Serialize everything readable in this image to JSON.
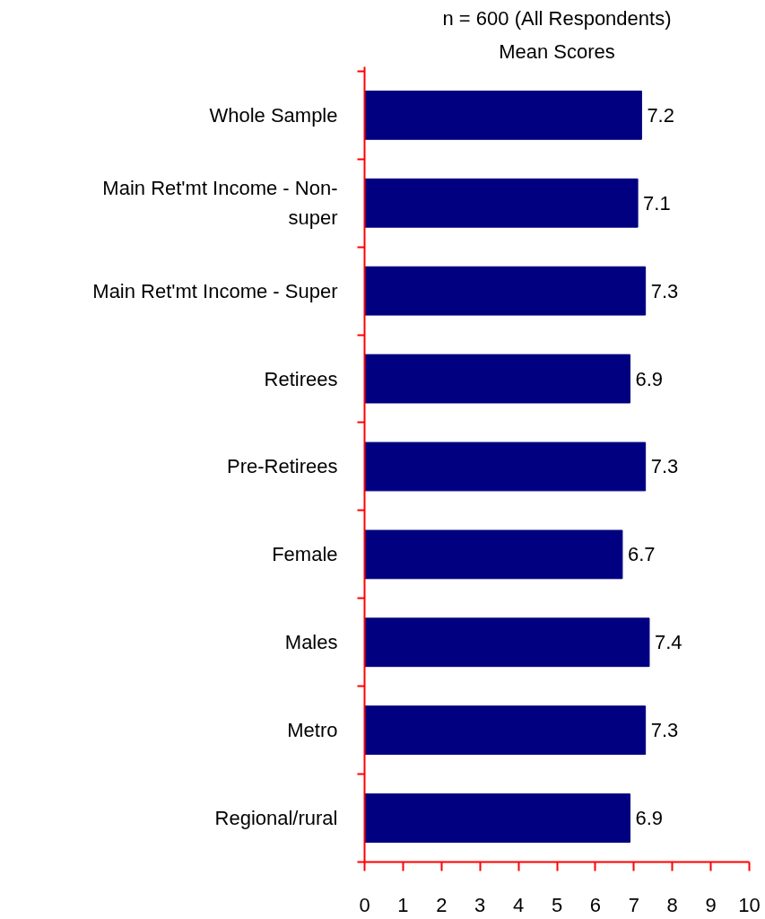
{
  "chart_data": {
    "type": "bar",
    "orientation": "horizontal",
    "title": "n = 600 (All Respondents)",
    "subtitle": "Mean Scores",
    "categories": [
      "Whole Sample",
      "Main Ret'mt Income - Non-\nsuper",
      "Main Ret'mt Income - Super",
      "Retirees",
      "Pre-Retirees",
      "Female",
      "Males",
      "Metro",
      "Regional/rural"
    ],
    "values": [
      7.2,
      7.1,
      7.3,
      6.9,
      7.3,
      6.7,
      7.4,
      7.3,
      6.9
    ],
    "color": "#000080",
    "data_labels": true,
    "grid": false,
    "xlim": [
      0,
      10
    ],
    "xticks": [
      0,
      1,
      2,
      3,
      4,
      5,
      6,
      7,
      8,
      9,
      10
    ]
  }
}
